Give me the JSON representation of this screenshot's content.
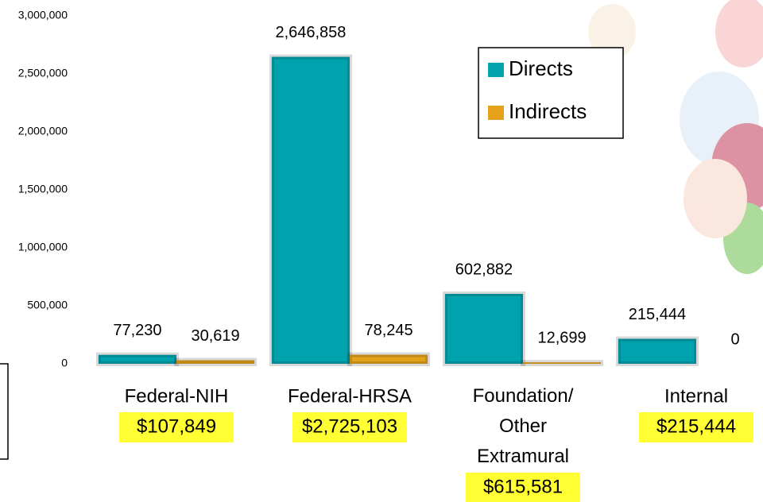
{
  "chart_data": {
    "type": "bar",
    "categories": [
      "Federal-NIH",
      "Federal-HRSA",
      "Foundation/ Other Extramural",
      "Internal"
    ],
    "series": [
      {
        "name": "Directs",
        "color": "#00a3ad",
        "values": [
          77230,
          2646858,
          602882,
          215444
        ],
        "value_labels": [
          "77,230",
          "2,646,858",
          "602,882",
          "215,444"
        ]
      },
      {
        "name": "Indirects",
        "color": "#e3a21a",
        "values": [
          30619,
          78245,
          12699,
          0
        ],
        "value_labels": [
          "30,619",
          "78,245",
          "12,699",
          "0"
        ]
      }
    ],
    "total_labels": [
      "$107,849",
      "$2,725,103",
      "$615,581",
      "$215,444"
    ],
    "ylim": [
      0,
      3000000
    ],
    "yticks": [
      0,
      {
        "value": 500000,
        "label": "500,000"
      },
      {
        "value": 1000000,
        "label": "1,000,000"
      },
      {
        "value": 1500000,
        "label": "1,500,000"
      },
      {
        "value": 2000000,
        "label": "2,000,000"
      },
      {
        "value": 2500000,
        "label": "2,500,000"
      },
      {
        "value": 3000000,
        "label": "3,000,000"
      }
    ],
    "legend": "top-right"
  }
}
